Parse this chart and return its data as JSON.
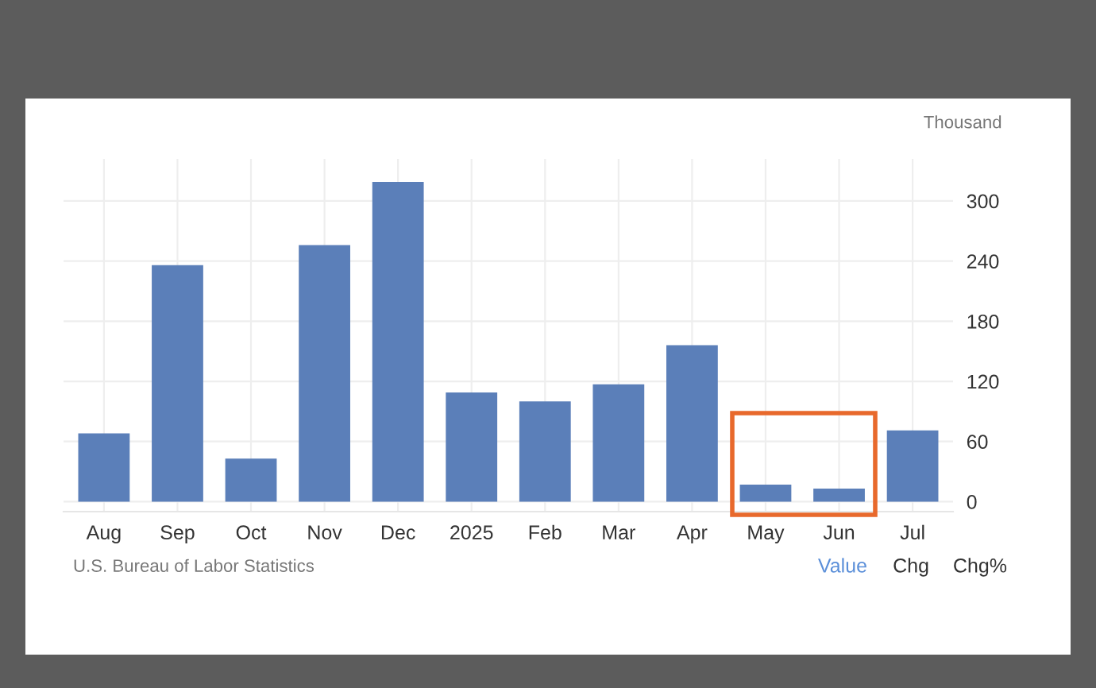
{
  "chart_data": {
    "type": "bar",
    "ylabel": "Thousand",
    "categories": [
      "Aug",
      "Sep",
      "Oct",
      "Nov",
      "Dec",
      "2025",
      "Feb",
      "Mar",
      "Apr",
      "May",
      "Jun",
      "Jul"
    ],
    "values": [
      68,
      236,
      43,
      256,
      319,
      109,
      100,
      117,
      156,
      17,
      13,
      71
    ],
    "color": "#5b7fb9",
    "ylim": [
      -10,
      342
    ],
    "yticks": [
      0,
      60,
      120,
      180,
      240,
      300
    ],
    "grid": true,
    "annotations": [
      "U.S. Bureau of Labor Statistics",
      "Value",
      "Chg",
      "Chg%"
    ]
  }
}
